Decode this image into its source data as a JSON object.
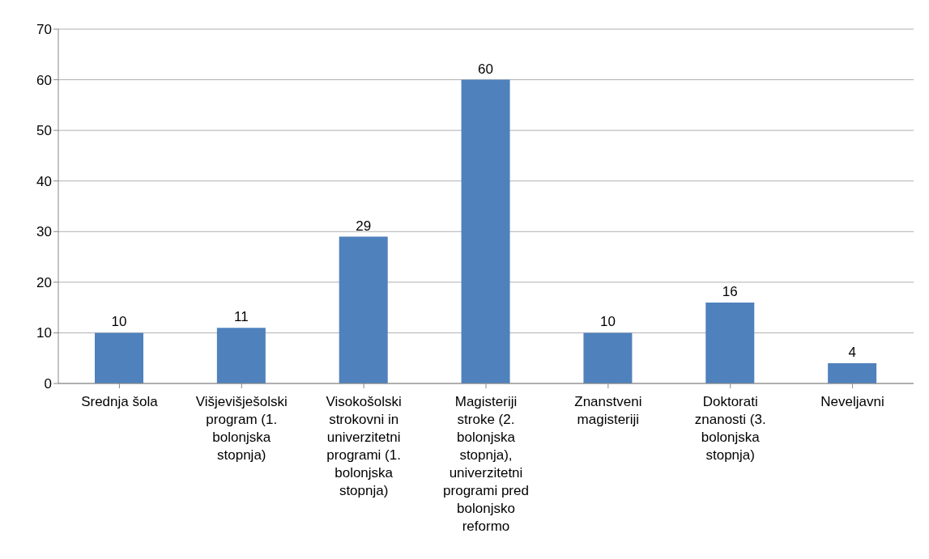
{
  "chart_data": {
    "type": "bar",
    "categories": [
      "Srednja šola",
      "Višjevišješolski program (1. bolonjska stopnja)",
      "Visokošolski strokovni in univerzitetni programi (1. bolonjska stopnja)",
      "Magisteriji stroke (2. bolonjska stopnja), univerzitetni programi pred bolonjsko reformo",
      "Znanstveni magisteriji",
      "Doktorati znanosti (3. bolonjska stopnja)",
      "Neveljavni"
    ],
    "values": [
      10,
      11,
      29,
      60,
      10,
      16,
      4
    ],
    "color": "#4f81bd",
    "ylim": [
      0,
      70
    ],
    "yticks": [
      0,
      10,
      20,
      30,
      40,
      50,
      60,
      70
    ],
    "grid": "y",
    "data_labels": true,
    "legend": false
  }
}
